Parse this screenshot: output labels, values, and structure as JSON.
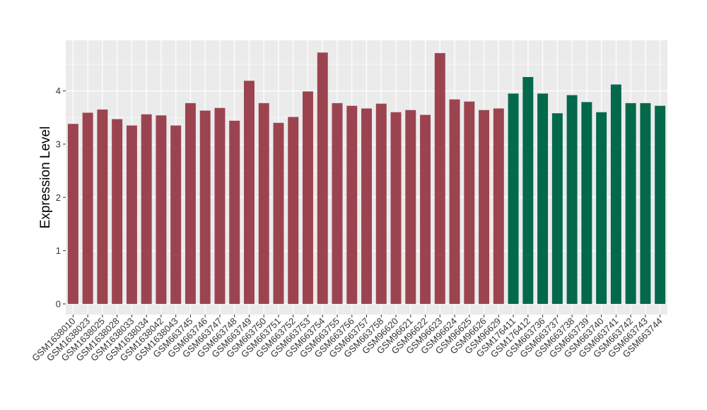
{
  "chart_data": {
    "type": "bar",
    "title": "",
    "xlabel": "",
    "ylabel": "Expression Level",
    "ylim": [
      -0.2,
      4.95
    ],
    "yticks": [
      0,
      1,
      2,
      3,
      4
    ],
    "grid": true,
    "legend": "none",
    "colors": {
      "red_group": "#9b4450",
      "green_group": "#04694a",
      "panel": "#ebebeb",
      "grid": "#ffffff"
    },
    "categories": [
      "GSM1638010",
      "GSM1638023",
      "GSM1638025",
      "GSM1638028",
      "GSM1638033",
      "GSM1638034",
      "GSM1638042",
      "GSM1638043",
      "GSM663745",
      "GSM663746",
      "GSM663747",
      "GSM663748",
      "GSM663749",
      "GSM663750",
      "GSM663751",
      "GSM663752",
      "GSM663753",
      "GSM663754",
      "GSM663755",
      "GSM663756",
      "GSM663757",
      "GSM663758",
      "GSM96620",
      "GSM96621",
      "GSM96622",
      "GSM96623",
      "GSM96624",
      "GSM96625",
      "GSM96626",
      "GSM96629",
      "GSM176411",
      "GSM176412",
      "GSM663736",
      "GSM663737",
      "GSM663738",
      "GSM663739",
      "GSM663740",
      "GSM663741",
      "GSM663742",
      "GSM663743",
      "GSM663744"
    ],
    "values": [
      3.38,
      3.59,
      3.65,
      3.47,
      3.35,
      3.56,
      3.54,
      3.35,
      3.77,
      3.63,
      3.68,
      3.44,
      4.19,
      3.77,
      3.4,
      3.51,
      3.99,
      4.72,
      3.77,
      3.72,
      3.67,
      3.76,
      3.6,
      3.64,
      3.55,
      4.71,
      3.84,
      3.8,
      3.64,
      3.67,
      3.95,
      4.26,
      3.95,
      3.58,
      3.92,
      3.79,
      3.6,
      4.12,
      3.77,
      3.77,
      3.72
    ],
    "groups": [
      "red",
      "red",
      "red",
      "red",
      "red",
      "red",
      "red",
      "red",
      "red",
      "red",
      "red",
      "red",
      "red",
      "red",
      "red",
      "red",
      "red",
      "red",
      "red",
      "red",
      "red",
      "red",
      "red",
      "red",
      "red",
      "red",
      "red",
      "red",
      "red",
      "red",
      "green",
      "green",
      "green",
      "green",
      "green",
      "green",
      "green",
      "green",
      "green",
      "green",
      "green"
    ]
  }
}
